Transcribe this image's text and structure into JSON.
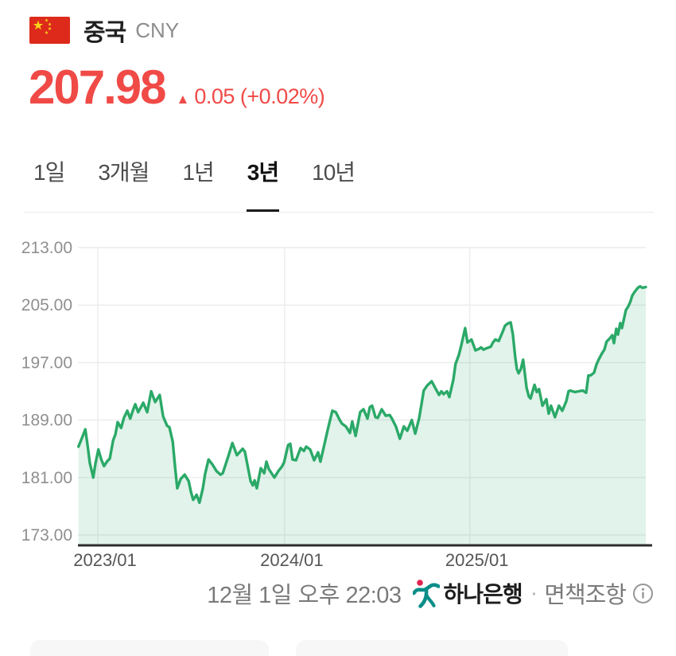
{
  "header": {
    "country_name": "중국",
    "currency_code": "CNY",
    "flag_icon": "china-flag"
  },
  "price": {
    "value": "207.98",
    "direction": "up",
    "arrow": "▲",
    "change": "0.05",
    "change_percent": "(+0.02%)",
    "color": "#f04a47"
  },
  "tabs": [
    {
      "label": "1일",
      "active": false
    },
    {
      "label": "3개월",
      "active": false
    },
    {
      "label": "1년",
      "active": false
    },
    {
      "label": "3년",
      "active": true
    },
    {
      "label": "10년",
      "active": false
    }
  ],
  "chart_data": {
    "type": "area",
    "ylim": [
      173,
      213
    ],
    "ytick_values": [
      213,
      205,
      197,
      189,
      181,
      173
    ],
    "ytick_labels": [
      "213.00",
      "205.00",
      "197.00",
      "189.00",
      "181.00",
      "173.00"
    ],
    "xticks": [
      {
        "label": "2023/01",
        "pos": 0.035
      },
      {
        "label": "2024/01",
        "pos": 0.364
      },
      {
        "label": "2025/01",
        "pos": 0.69
      }
    ],
    "grid": true,
    "legend": "none",
    "line_color": "#2ba968",
    "fill_color": "rgba(46,169,107,0.14)",
    "points": [
      [
        0.001,
        185.3
      ],
      [
        0.007,
        186.5
      ],
      [
        0.013,
        187.7
      ],
      [
        0.017,
        185.5
      ],
      [
        0.021,
        183.0
      ],
      [
        0.027,
        181.0
      ],
      [
        0.031,
        183.0
      ],
      [
        0.036,
        184.9
      ],
      [
        0.041,
        183.5
      ],
      [
        0.046,
        182.6
      ],
      [
        0.052,
        183.3
      ],
      [
        0.056,
        183.6
      ],
      [
        0.062,
        186.2
      ],
      [
        0.066,
        187.0
      ],
      [
        0.07,
        188.7
      ],
      [
        0.076,
        187.9
      ],
      [
        0.081,
        189.3
      ],
      [
        0.087,
        190.3
      ],
      [
        0.092,
        189.2
      ],
      [
        0.097,
        190.4
      ],
      [
        0.101,
        191.2
      ],
      [
        0.106,
        190.1
      ],
      [
        0.111,
        190.8
      ],
      [
        0.115,
        191.4
      ],
      [
        0.122,
        190.1
      ],
      [
        0.129,
        193.0
      ],
      [
        0.136,
        191.5
      ],
      [
        0.144,
        192.5
      ],
      [
        0.15,
        189.5
      ],
      [
        0.157,
        188.2
      ],
      [
        0.161,
        188.0
      ],
      [
        0.167,
        186.0
      ],
      [
        0.171,
        182.5
      ],
      [
        0.175,
        179.5
      ],
      [
        0.181,
        180.8
      ],
      [
        0.188,
        181.4
      ],
      [
        0.195,
        180.5
      ],
      [
        0.199,
        179.0
      ],
      [
        0.203,
        177.9
      ],
      [
        0.209,
        178.6
      ],
      [
        0.214,
        177.5
      ],
      [
        0.22,
        179.5
      ],
      [
        0.224,
        181.5
      ],
      [
        0.23,
        183.5
      ],
      [
        0.237,
        182.8
      ],
      [
        0.244,
        181.9
      ],
      [
        0.251,
        181.4
      ],
      [
        0.255,
        181.6
      ],
      [
        0.265,
        184.0
      ],
      [
        0.272,
        185.8
      ],
      [
        0.28,
        184.1
      ],
      [
        0.29,
        185.0
      ],
      [
        0.294,
        184.6
      ],
      [
        0.304,
        180.5
      ],
      [
        0.308,
        179.9
      ],
      [
        0.311,
        180.6
      ],
      [
        0.315,
        179.5
      ],
      [
        0.322,
        182.3
      ],
      [
        0.328,
        181.6
      ],
      [
        0.332,
        183.2
      ],
      [
        0.336,
        182.2
      ],
      [
        0.346,
        181.0
      ],
      [
        0.353,
        181.9
      ],
      [
        0.359,
        182.5
      ],
      [
        0.363,
        183.1
      ],
      [
        0.37,
        185.5
      ],
      [
        0.374,
        185.7
      ],
      [
        0.378,
        183.5
      ],
      [
        0.384,
        183.4
      ],
      [
        0.392,
        185.1
      ],
      [
        0.398,
        184.7
      ],
      [
        0.402,
        185.3
      ],
      [
        0.409,
        184.9
      ],
      [
        0.416,
        183.4
      ],
      [
        0.423,
        184.5
      ],
      [
        0.427,
        183.2
      ],
      [
        0.434,
        185.6
      ],
      [
        0.44,
        187.7
      ],
      [
        0.448,
        190.3
      ],
      [
        0.454,
        190.1
      ],
      [
        0.461,
        189.0
      ],
      [
        0.465,
        188.5
      ],
      [
        0.472,
        188.1
      ],
      [
        0.479,
        187.2
      ],
      [
        0.483,
        188.8
      ],
      [
        0.489,
        186.8
      ],
      [
        0.497,
        190.1
      ],
      [
        0.503,
        190.5
      ],
      [
        0.51,
        189.2
      ],
      [
        0.514,
        190.8
      ],
      [
        0.518,
        191.0
      ],
      [
        0.524,
        189.4
      ],
      [
        0.528,
        189.3
      ],
      [
        0.535,
        190.5
      ],
      [
        0.542,
        189.6
      ],
      [
        0.549,
        189.7
      ],
      [
        0.553,
        189.2
      ],
      [
        0.56,
        188.1
      ],
      [
        0.567,
        186.4
      ],
      [
        0.574,
        188.1
      ],
      [
        0.58,
        187.5
      ],
      [
        0.588,
        189.0
      ],
      [
        0.594,
        187.1
      ],
      [
        0.601,
        189.3
      ],
      [
        0.605,
        191.2
      ],
      [
        0.609,
        193.1
      ],
      [
        0.615,
        193.8
      ],
      [
        0.623,
        194.4
      ],
      [
        0.629,
        193.5
      ],
      [
        0.636,
        192.5
      ],
      [
        0.64,
        193.0
      ],
      [
        0.644,
        192.6
      ],
      [
        0.65,
        193.0
      ],
      [
        0.654,
        192.2
      ],
      [
        0.661,
        194.6
      ],
      [
        0.665,
        196.8
      ],
      [
        0.671,
        198.1
      ],
      [
        0.675,
        199.4
      ],
      [
        0.682,
        201.8
      ],
      [
        0.686,
        199.8
      ],
      [
        0.693,
        200.2
      ],
      [
        0.7,
        198.7
      ],
      [
        0.706,
        198.9
      ],
      [
        0.71,
        199.1
      ],
      [
        0.714,
        198.8
      ],
      [
        0.72,
        199.0
      ],
      [
        0.727,
        199.2
      ],
      [
        0.731,
        199.8
      ],
      [
        0.735,
        200.2
      ],
      [
        0.741,
        200.0
      ],
      [
        0.748,
        201.3
      ],
      [
        0.752,
        202.1
      ],
      [
        0.756,
        202.4
      ],
      [
        0.762,
        202.6
      ],
      [
        0.766,
        200.9
      ],
      [
        0.77,
        197.8
      ],
      [
        0.773,
        196.1
      ],
      [
        0.776,
        195.5
      ],
      [
        0.78,
        196.1
      ],
      [
        0.784,
        197.4
      ],
      [
        0.79,
        193.5
      ],
      [
        0.794,
        192.3
      ],
      [
        0.797,
        192.0
      ],
      [
        0.804,
        193.9
      ],
      [
        0.808,
        192.9
      ],
      [
        0.812,
        193.3
      ],
      [
        0.818,
        191.0
      ],
      [
        0.825,
        191.9
      ],
      [
        0.829,
        189.9
      ],
      [
        0.833,
        191.0
      ],
      [
        0.84,
        189.4
      ],
      [
        0.847,
        191.0
      ],
      [
        0.853,
        190.3
      ],
      [
        0.86,
        191.6
      ],
      [
        0.864,
        193.0
      ],
      [
        0.867,
        193.1
      ],
      [
        0.875,
        192.9
      ],
      [
        0.882,
        193.0
      ],
      [
        0.889,
        193.1
      ],
      [
        0.895,
        192.8
      ],
      [
        0.899,
        195.2
      ],
      [
        0.903,
        195.2
      ],
      [
        0.909,
        195.6
      ],
      [
        0.913,
        196.7
      ],
      [
        0.917,
        197.4
      ],
      [
        0.923,
        198.3
      ],
      [
        0.927,
        198.8
      ],
      [
        0.931,
        199.9
      ],
      [
        0.937,
        200.4
      ],
      [
        0.941,
        200.8
      ],
      [
        0.944,
        199.7
      ],
      [
        0.948,
        201.7
      ],
      [
        0.951,
        200.9
      ],
      [
        0.955,
        202.5
      ],
      [
        0.958,
        201.8
      ],
      [
        0.965,
        204.3
      ],
      [
        0.969,
        204.8
      ],
      [
        0.973,
        205.5
      ],
      [
        0.976,
        206.3
      ],
      [
        0.98,
        206.8
      ],
      [
        0.986,
        207.4
      ],
      [
        0.99,
        207.6
      ],
      [
        0.994,
        207.4
      ],
      [
        1.0,
        207.5
      ]
    ]
  },
  "footer": {
    "timestamp": "12월 1일 오후 22:03",
    "provider": "하나은행",
    "separator": "·",
    "disclaimer": "면책조항"
  },
  "colors": {
    "price_red": "#f04a47",
    "chart_line_green": "#2ba968",
    "chart_fill_green": "#e2f3e9",
    "grid_gray": "#ececec",
    "axis_dark": "#2e2e2e",
    "ylabel_gray": "#8f8f8f",
    "xlabel_gray": "#565656",
    "footer_gray": "#7a7a7a",
    "hana_teal": "#0b8e88",
    "hana_red": "#e02350",
    "flag_red": "#dd2a1b",
    "flag_yellow": "#fcd21c"
  }
}
